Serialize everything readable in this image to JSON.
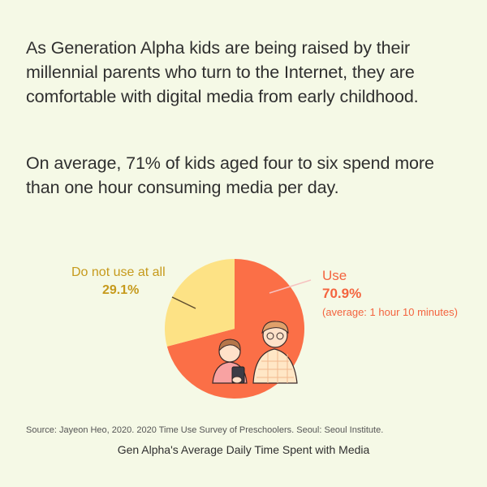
{
  "intro": {
    "paragraph1": "As Generation Alpha kids are being raised by their millennial parents who turn to the Internet, they are comfortable with digital media from early childhood.",
    "paragraph2": "On average, 71% of kids aged four to six spend more than one hour consuming media per day."
  },
  "chart_data": {
    "type": "pie",
    "title": "Gen Alpha's Average Daily Time Spent with Media",
    "slices": [
      {
        "label": "Use",
        "value": 70.9,
        "value_label": "70.9%",
        "note": "(average: 1 hour 10 minutes)",
        "color": "#fb6f47"
      },
      {
        "label": "Do not use at all",
        "value": 29.1,
        "value_label": "29.1%",
        "color": "#fde285"
      }
    ],
    "label_colors": {
      "use": "#f4643f",
      "no_use": "#c69a1c"
    }
  },
  "source": "Source: Jayeon Heo, 2020. 2020 Time Use Survey of Preschoolers. Seoul: Seoul Institute."
}
